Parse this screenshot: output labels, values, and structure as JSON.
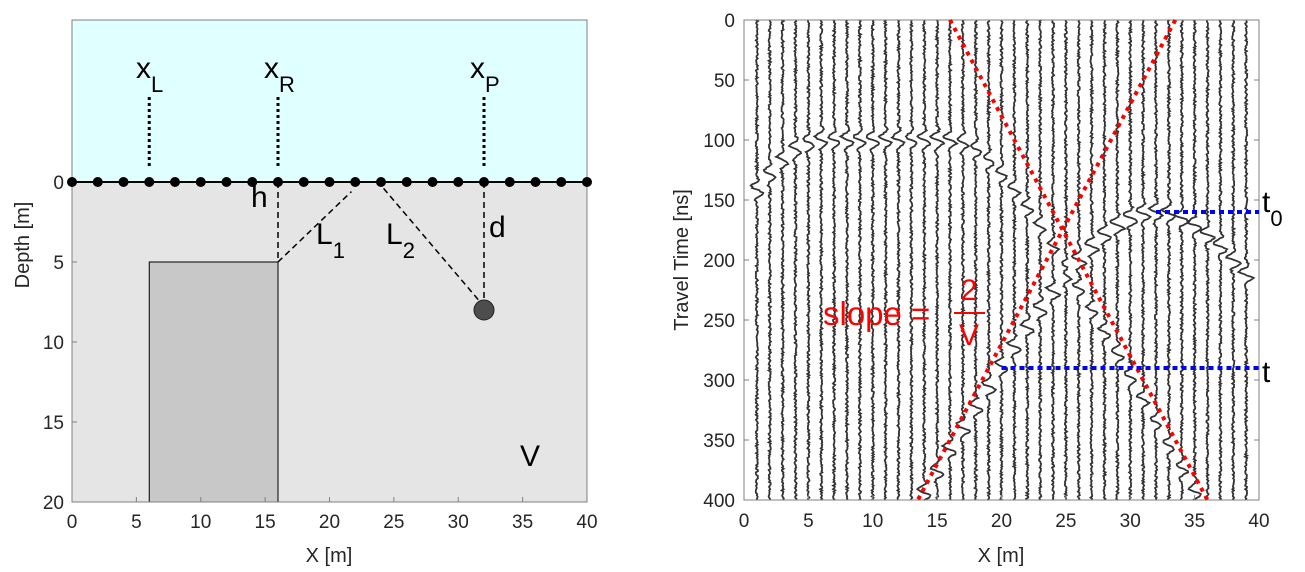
{
  "chart_data": [
    {
      "type": "diagram",
      "xlabel": "X [m]",
      "ylabel": "Depth [m]",
      "xlim": [
        0,
        40
      ],
      "ylim": [
        -10,
        20
      ],
      "y_reversed": true,
      "xticks": [
        "0",
        "5",
        "10",
        "15",
        "20",
        "25",
        "30",
        "35",
        "40"
      ],
      "yticks": [
        "0",
        "5",
        "10",
        "15",
        "20"
      ],
      "colors": {
        "air": "#e0ffff",
        "ground": "#e5e5e5",
        "block": "#c8c8c8",
        "target": "#4d4d4d"
      },
      "antenna_positions": [
        0,
        2,
        4,
        6,
        8,
        10,
        12,
        14,
        16,
        18,
        20,
        22,
        24,
        26,
        28,
        30,
        32,
        34,
        36,
        38,
        40
      ],
      "block": {
        "x": [
          6,
          16
        ],
        "depth": [
          5,
          20
        ]
      },
      "point_target": {
        "x": 32,
        "depth": 8
      },
      "labels": {
        "xL": {
          "main": "x",
          "sub": "L"
        },
        "xR": {
          "main": "x",
          "sub": "R"
        },
        "xP": {
          "main": "x",
          "sub": "P"
        },
        "h": "h",
        "L1": {
          "main": "L",
          "sub": "1"
        },
        "L2": {
          "main": "L",
          "sub": "2"
        },
        "d": "d",
        "V": "V"
      },
      "marker_x": {
        "xL": 6,
        "xR": 16,
        "xP": 32
      }
    },
    {
      "type": "wiggle",
      "xlabel": "X [m]",
      "ylabel": "Travel Time [ns]",
      "xlim": [
        0,
        40
      ],
      "ylim": [
        0,
        400
      ],
      "y_reversed": true,
      "xticks": [
        "0",
        "5",
        "10",
        "15",
        "20",
        "25",
        "30",
        "35",
        "40"
      ],
      "yticks": [
        "0",
        "50",
        "100",
        "150",
        "200",
        "250",
        "300",
        "350",
        "400"
      ],
      "trace_positions_range": [
        1,
        39
      ],
      "red_lines": [
        {
          "from": [
            16,
            0
          ],
          "to": [
            36,
            400
          ]
        },
        {
          "from": [
            33.5,
            0
          ],
          "to": [
            13.5,
            400
          ]
        }
      ],
      "blue_lines": [
        {
          "label": {
            "main": "t",
            "sub": "0"
          },
          "t": 160,
          "x": [
            32,
            40
          ]
        },
        {
          "label": {
            "main": "t",
            "sub": ""
          },
          "t": 290,
          "x": [
            20,
            40
          ]
        }
      ],
      "slope_annotation": {
        "text": "slope = ",
        "numerator": "2",
        "denominator": "V"
      },
      "colors": {
        "trace": "#333333",
        "red": "#ff0000",
        "blue": "#0000ff"
      }
    }
  ]
}
